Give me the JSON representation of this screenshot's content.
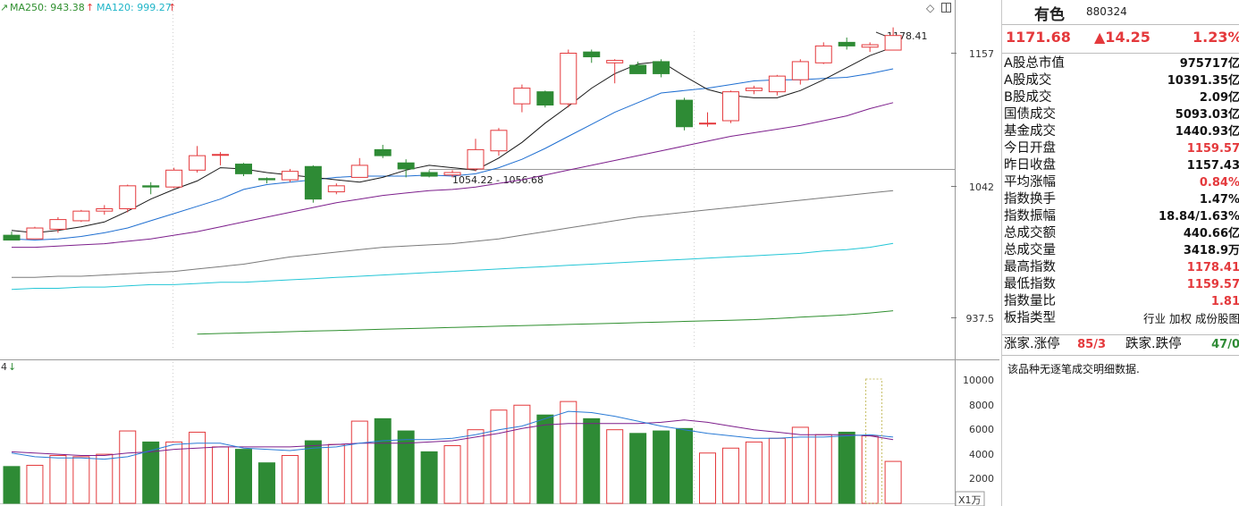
{
  "colors": {
    "up": "#e4393c",
    "down": "#2e8b35",
    "ma5": "#1a1a1a",
    "ma10": "#1f6fd1",
    "ma20": "#7d1f8c",
    "ma60": "#7a7a7a",
    "ma120": "#24c6d6",
    "ma250": "#2f8f2f",
    "volma1": "#2a7bd6",
    "volma2": "#7d1f8c"
  },
  "legend": {
    "ma250": "MA250: 943.38",
    "ma120": "MA120: 999.27"
  },
  "annotations": {
    "high": "1178.41",
    "low_range": "1054.22 - 1056.68",
    "vol_prefix": "4",
    "vol_unit": "X1万"
  },
  "price_ticks": [
    "1157",
    "1042",
    "937.5"
  ],
  "volume_ticks": [
    "10000",
    "8000",
    "6000",
    "4000",
    "2000"
  ],
  "header": {
    "name": "有色",
    "code": "880324",
    "price": "1171.68",
    "change": "▲14.25",
    "pct": "1.23%"
  },
  "info_rows": [
    {
      "k": "A股总市值",
      "v": "975717亿",
      "red": false
    },
    {
      "k": "A股成交",
      "v": "10391.35亿",
      "red": false
    },
    {
      "k": "B股成交",
      "v": "2.09亿",
      "red": false
    },
    {
      "k": "国债成交",
      "v": "5093.03亿",
      "red": false
    },
    {
      "k": "基金成交",
      "v": "1440.93亿",
      "red": false
    },
    {
      "k": "今日开盘",
      "v": "1159.57",
      "red": true
    },
    {
      "k": "昨日收盘",
      "v": "1157.43",
      "red": false
    },
    {
      "k": "平均涨幅",
      "v": "0.84%",
      "red": true
    },
    {
      "k": "指数换手",
      "v": "1.47%",
      "red": false
    },
    {
      "k": "指数振幅",
      "v": "18.84/1.63%",
      "red": false
    },
    {
      "k": "总成交额",
      "v": "440.66亿",
      "red": false
    },
    {
      "k": "总成交量",
      "v": "3418.9万",
      "red": false
    },
    {
      "k": "最高指数",
      "v": "1178.41",
      "red": true
    },
    {
      "k": "最低指数",
      "v": "1159.57",
      "red": true
    },
    {
      "k": "指数量比",
      "v": "1.81",
      "red": true
    },
    {
      "k": "板指类型",
      "v": "行业 加权 成份股图",
      "red": false
    }
  ],
  "limits": {
    "up_label": "涨家.涨停",
    "up_value": "85/3",
    "down_label": "跌家.跌停",
    "down_value": "47/0"
  },
  "note": "该品种无逐笔成交明细数据.",
  "chart_data": {
    "type": "candlestick",
    "ylim": [
      920,
      1190
    ],
    "volume_ylim": [
      0,
      11000
    ],
    "candles": [
      {
        "o": 1006,
        "h": 1009,
        "l": 1002,
        "c": 1002,
        "v": 3000
      },
      {
        "o": 1003,
        "h": 1013,
        "l": 1003,
        "c": 1012,
        "v": 3100
      },
      {
        "o": 1011,
        "h": 1021,
        "l": 1008,
        "c": 1019,
        "v": 3900
      },
      {
        "o": 1018,
        "h": 1027,
        "l": 1017,
        "c": 1026,
        "v": 3800
      },
      {
        "o": 1026,
        "h": 1031,
        "l": 1023,
        "c": 1028,
        "v": 4000
      },
      {
        "o": 1028,
        "h": 1048,
        "l": 1025,
        "c": 1047,
        "v": 5900
      },
      {
        "o": 1047,
        "h": 1050,
        "l": 1040,
        "c": 1046,
        "v": 5000
      },
      {
        "o": 1046,
        "h": 1062,
        "l": 1045,
        "c": 1060,
        "v": 5000
      },
      {
        "o": 1060,
        "h": 1080,
        "l": 1058,
        "c": 1072,
        "v": 5800
      },
      {
        "o": 1073,
        "h": 1075,
        "l": 1064,
        "c": 1073,
        "v": 4600
      },
      {
        "o": 1065,
        "h": 1066,
        "l": 1055,
        "c": 1057,
        "v": 4400
      },
      {
        "o": 1053,
        "h": 1054,
        "l": 1049,
        "c": 1052,
        "v": 3300
      },
      {
        "o": 1052,
        "h": 1061,
        "l": 1050,
        "c": 1059,
        "v": 3900
      },
      {
        "o": 1063,
        "h": 1064,
        "l": 1033,
        "c": 1036,
        "v": 5100
      },
      {
        "o": 1042,
        "h": 1049,
        "l": 1040,
        "c": 1047,
        "v": 4800
      },
      {
        "o": 1054,
        "h": 1070,
        "l": 1054,
        "c": 1064,
        "v": 6700
      },
      {
        "o": 1077,
        "h": 1081,
        "l": 1070,
        "c": 1072,
        "v": 6900
      },
      {
        "o": 1066,
        "h": 1069,
        "l": 1054,
        "c": 1061,
        "v": 5900
      },
      {
        "o": 1058,
        "h": 1060,
        "l": 1054,
        "c": 1055,
        "v": 4200
      },
      {
        "o": 1056,
        "h": 1060,
        "l": 1054,
        "c": 1058,
        "v": 4700
      },
      {
        "o": 1061,
        "h": 1086,
        "l": 1059,
        "c": 1077,
        "v": 6000
      },
      {
        "o": 1076,
        "h": 1095,
        "l": 1072,
        "c": 1093,
        "v": 7600
      },
      {
        "o": 1115,
        "h": 1131,
        "l": 1108,
        "c": 1128,
        "v": 8000
      },
      {
        "o": 1125,
        "h": 1126,
        "l": 1112,
        "c": 1114,
        "v": 7200
      },
      {
        "o": 1115,
        "h": 1160,
        "l": 1112,
        "c": 1157,
        "v": 8300
      },
      {
        "o": 1158,
        "h": 1160,
        "l": 1149,
        "c": 1154,
        "v": 6900
      },
      {
        "o": 1149,
        "h": 1152,
        "l": 1132,
        "c": 1151,
        "v": 6000
      },
      {
        "o": 1147,
        "h": 1150,
        "l": 1140,
        "c": 1140,
        "v": 5700
      },
      {
        "o": 1150,
        "h": 1152,
        "l": 1137,
        "c": 1140,
        "v": 5900
      },
      {
        "o": 1118,
        "h": 1120,
        "l": 1093,
        "c": 1096,
        "v": 6100
      },
      {
        "o": 1099,
        "h": 1108,
        "l": 1096,
        "c": 1099,
        "v": 4100
      },
      {
        "o": 1101,
        "h": 1126,
        "l": 1099,
        "c": 1125,
        "v": 4500
      },
      {
        "o": 1126,
        "h": 1130,
        "l": 1123,
        "c": 1128,
        "v": 5000
      },
      {
        "o": 1125,
        "h": 1139,
        "l": 1122,
        "c": 1138,
        "v": 5300
      },
      {
        "o": 1135,
        "h": 1152,
        "l": 1131,
        "c": 1150,
        "v": 6200
      },
      {
        "o": 1149,
        "h": 1166,
        "l": 1148,
        "c": 1163,
        "v": 5600
      },
      {
        "o": 1166,
        "h": 1170,
        "l": 1160,
        "c": 1163,
        "v": 5800
      },
      {
        "o": 1162,
        "h": 1166,
        "l": 1158,
        "c": 1164,
        "v": 5500
      },
      {
        "o": 1159.57,
        "h": 1178.41,
        "l": 1159.57,
        "c": 1171.68,
        "v": 3419
      }
    ],
    "ma5": [
      1010,
      1008,
      1010,
      1013,
      1017,
      1026,
      1036,
      1044,
      1051,
      1062,
      1061,
      1058,
      1056,
      1054,
      1052,
      1050,
      1054,
      1060,
      1064,
      1062,
      1060,
      1070,
      1083,
      1099,
      1113,
      1128,
      1140,
      1148,
      1150,
      1138,
      1127,
      1122,
      1120,
      1120,
      1126,
      1135,
      1145,
      1155,
      1162
    ],
    "ma10": [
      1003,
      1002,
      1003,
      1005,
      1008,
      1012,
      1018,
      1024,
      1030,
      1036,
      1044,
      1048,
      1050,
      1052,
      1054,
      1055,
      1055,
      1055,
      1056,
      1055,
      1057,
      1062,
      1069,
      1078,
      1088,
      1098,
      1108,
      1116,
      1124,
      1126,
      1128,
      1131,
      1134,
      1135,
      1135,
      1136,
      1137,
      1140,
      1144
    ],
    "ma20": [
      996,
      996,
      997,
      998,
      999,
      1001,
      1003,
      1006,
      1009,
      1013,
      1017,
      1021,
      1025,
      1029,
      1033,
      1036,
      1039,
      1041,
      1043,
      1044,
      1046,
      1049,
      1052,
      1056,
      1060,
      1064,
      1068,
      1072,
      1076,
      1080,
      1084,
      1088,
      1091,
      1094,
      1097,
      1101,
      1105,
      1111,
      1116
    ],
    "ma60": [
      971,
      971,
      972,
      972,
      973,
      974,
      975,
      976,
      978,
      980,
      982,
      985,
      988,
      990,
      992,
      994,
      996,
      997,
      998,
      999,
      1001,
      1003,
      1006,
      1009,
      1012,
      1015,
      1018,
      1021,
      1023,
      1025,
      1027,
      1029,
      1031,
      1033,
      1035,
      1037,
      1039,
      1041,
      1043
    ],
    "ma120": [
      961,
      962,
      962,
      963,
      963,
      964,
      965,
      965,
      966,
      967,
      967,
      968,
      969,
      970,
      971,
      972,
      973,
      974,
      975,
      976,
      977,
      978,
      979,
      980,
      981,
      982,
      983,
      984,
      985,
      986,
      987,
      988,
      989,
      990,
      991,
      993,
      994,
      996,
      999.27
    ],
    "ma250": [
      null,
      null,
      null,
      null,
      null,
      null,
      null,
      null,
      924,
      924.5,
      925,
      925.5,
      926,
      926.5,
      927,
      927.5,
      928,
      928.5,
      929,
      929.5,
      930,
      930.5,
      931,
      931.5,
      932,
      932.5,
      933,
      933.5,
      934,
      934.5,
      935,
      935.5,
      936,
      937,
      938,
      939,
      940,
      941.5,
      943.38
    ],
    "vol_ma1": [
      4100,
      3800,
      3700,
      3700,
      3600,
      3800,
      4300,
      4800,
      4900,
      4900,
      4500,
      4400,
      4300,
      4500,
      4600,
      4900,
      5100,
      5200,
      5200,
      5300,
      5600,
      6000,
      6300,
      6900,
      7500,
      7400,
      7100,
      6700,
      6300,
      6000,
      5700,
      5500,
      5300,
      5300,
      5400,
      5400,
      5500,
      5600,
      5400
    ],
    "vol_ma2": [
      4200,
      4100,
      4000,
      3900,
      3900,
      4100,
      4200,
      4400,
      4500,
      4600,
      4600,
      4600,
      4600,
      4700,
      4800,
      4900,
      4900,
      4900,
      5000,
      5100,
      5400,
      5700,
      6100,
      6400,
      6500,
      6500,
      6500,
      6500,
      6600,
      6800,
      6600,
      6300,
      6000,
      5800,
      5600,
      5600,
      5600,
      5500,
      5200
    ]
  }
}
